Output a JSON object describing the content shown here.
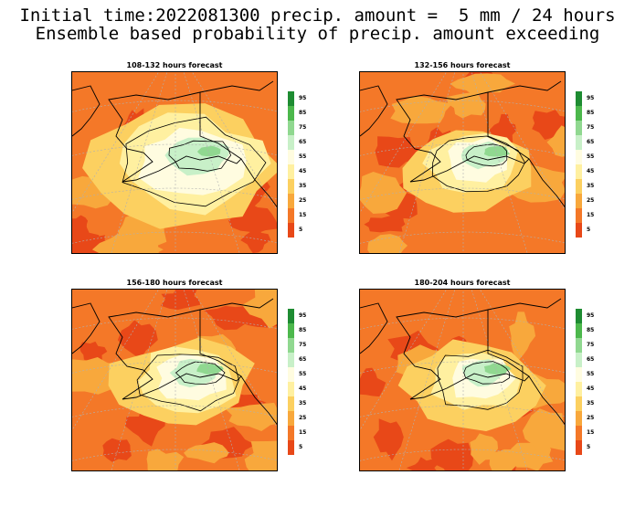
{
  "title": {
    "line1": "Initial time:2022081300 precip. amount =  5 mm / 24 hours",
    "line2": "Ensemble based probability of precip. amount exceeding"
  },
  "panels": [
    {
      "title": "108-132 hours forecast",
      "wetness": 1.0
    },
    {
      "title": "132-156 hours forecast",
      "wetness": 0.55
    },
    {
      "title": "156-180 hours forecast",
      "wetness": 0.6
    },
    {
      "title": "180-204 hours forecast",
      "wetness": 0.55
    }
  ],
  "colorbar": {
    "levels": [
      "95",
      "85",
      "75",
      "65",
      "55",
      "45",
      "35",
      "25",
      "15",
      "5"
    ],
    "colors": [
      "#1e8c32",
      "#4cb84c",
      "#90d890",
      "#c8f0c8",
      "#fffce0",
      "#fff0a0",
      "#fcd060",
      "#f8a83c",
      "#f47828",
      "#e84818"
    ]
  }
}
